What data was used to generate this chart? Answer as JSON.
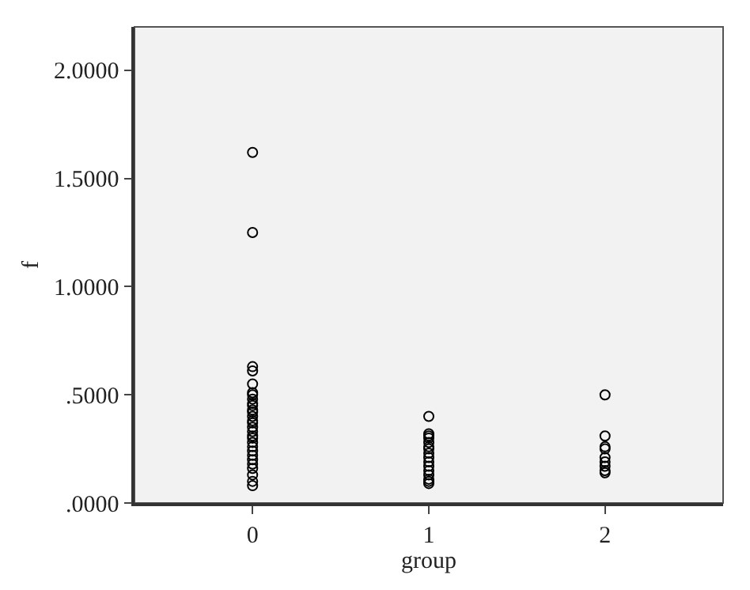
{
  "chart_data": {
    "type": "scatter",
    "xlabel": "group",
    "ylabel": "f",
    "xlim": [
      -0.67,
      2.67
    ],
    "xticks": [
      0,
      1,
      2
    ],
    "ylim": [
      0,
      2.2
    ],
    "yticks": [
      {
        "value": 0,
        "label": ".0000"
      },
      {
        "value": 0.5,
        "label": ".5000"
      },
      {
        "value": 1,
        "label": "1.0000"
      },
      {
        "value": 1.5,
        "label": "1.5000"
      },
      {
        "value": 2,
        "label": "2.0000"
      }
    ],
    "grid": false,
    "marker": "circle",
    "series": [
      {
        "color": "#000000",
        "x": [
          0,
          0,
          0,
          0,
          0,
          0,
          0,
          0,
          0,
          0,
          0,
          0,
          0,
          0,
          0,
          0,
          0,
          0,
          0,
          0,
          0,
          0,
          0,
          0,
          0,
          0,
          0,
          0,
          0,
          1,
          1,
          1,
          1,
          1,
          1,
          1,
          1,
          1,
          1,
          1,
          1,
          1,
          1,
          1,
          1,
          2,
          2,
          2,
          2,
          2,
          2,
          2,
          2,
          2
        ],
        "values": [
          1.62,
          1.25,
          0.63,
          0.61,
          0.55,
          0.51,
          0.5,
          0.48,
          0.46,
          0.45,
          0.43,
          0.42,
          0.4,
          0.38,
          0.37,
          0.35,
          0.33,
          0.31,
          0.3,
          0.28,
          0.26,
          0.24,
          0.22,
          0.2,
          0.18,
          0.16,
          0.13,
          0.1,
          0.08,
          0.4,
          0.32,
          0.31,
          0.3,
          0.28,
          0.26,
          0.25,
          0.23,
          0.21,
          0.19,
          0.17,
          0.15,
          0.13,
          0.11,
          0.1,
          0.09,
          0.5,
          0.31,
          0.26,
          0.25,
          0.21,
          0.19,
          0.17,
          0.15,
          0.14
        ]
      }
    ]
  }
}
